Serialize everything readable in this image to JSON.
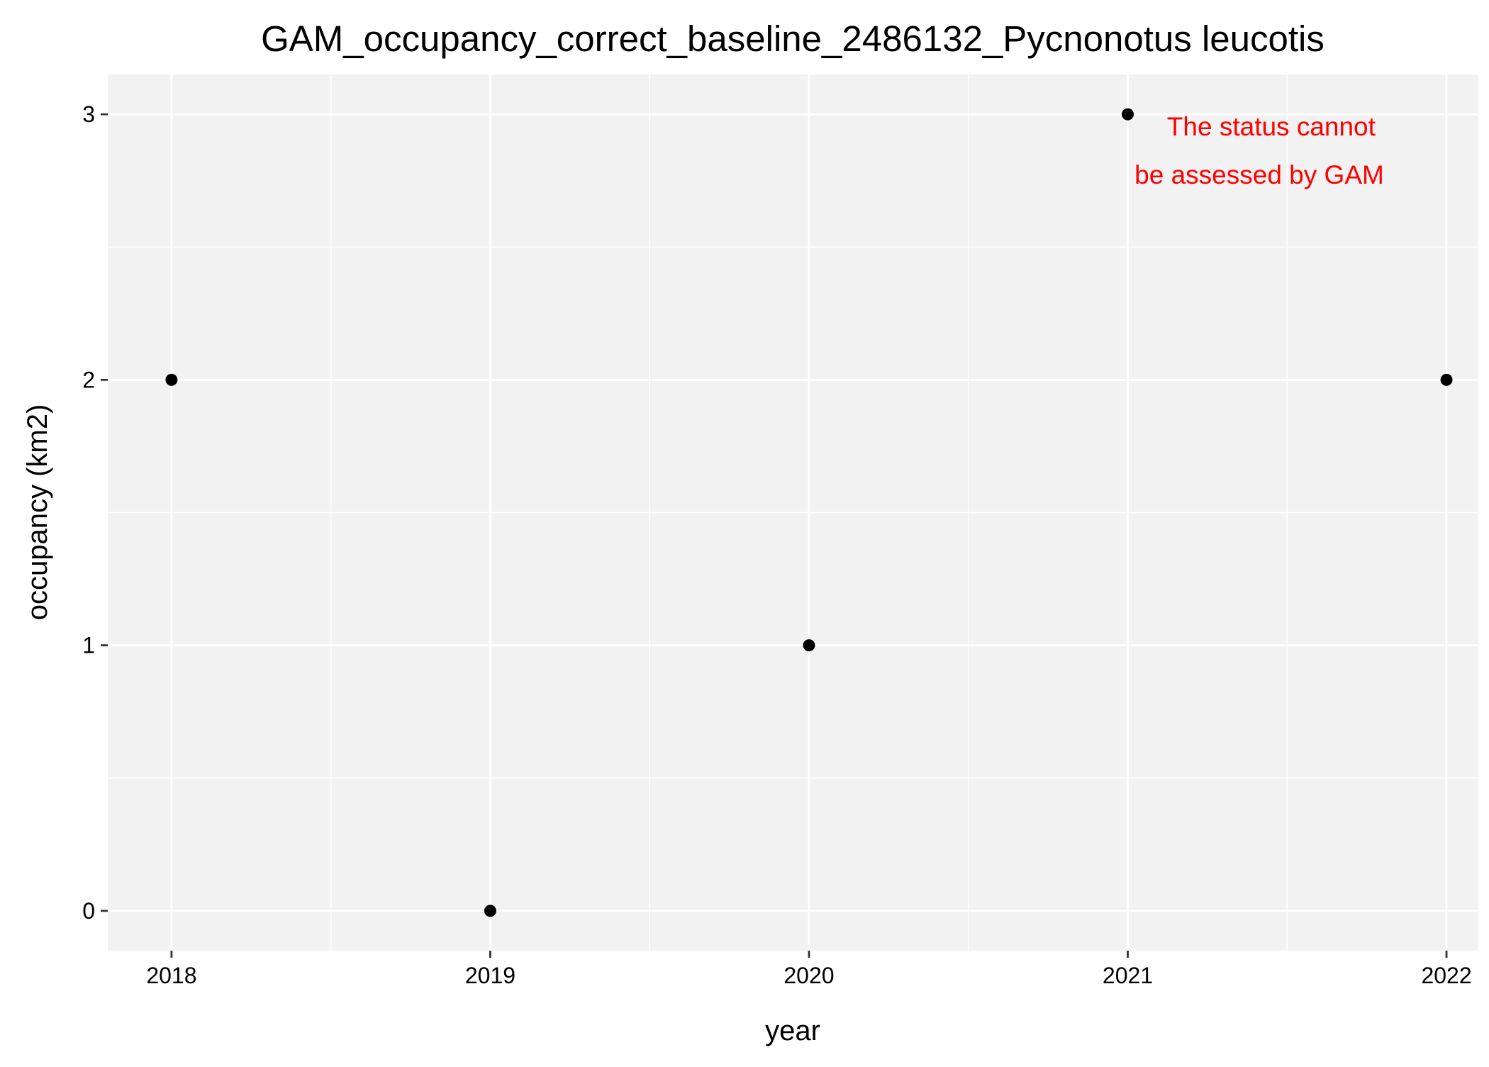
{
  "chart_data": {
    "type": "scatter",
    "title": "GAM_occupancy_correct_baseline_2486132_Pycnonotus leucotis",
    "xlabel": "year",
    "ylabel": "occupancy (km2)",
    "x_ticks": [
      "2018",
      "2019",
      "2020",
      "2021",
      "2022"
    ],
    "y_ticks": [
      "0",
      "1",
      "2",
      "3"
    ],
    "x": [
      2018,
      2019,
      2020,
      2021,
      2022
    ],
    "y": [
      2,
      0,
      1,
      3,
      2
    ],
    "xlim": [
      2017.8,
      2022.1
    ],
    "ylim": [
      -0.15,
      3.15
    ],
    "grid": true,
    "legend": "none",
    "annotation": {
      "lines": [
        "The status cannot",
        "be assessed by GAM"
      ],
      "color": "#ff0000",
      "placement": "top-right"
    },
    "colors": {
      "panel_background": "#f2f2f2",
      "grid": "#ffffff",
      "point": "#000000"
    }
  }
}
